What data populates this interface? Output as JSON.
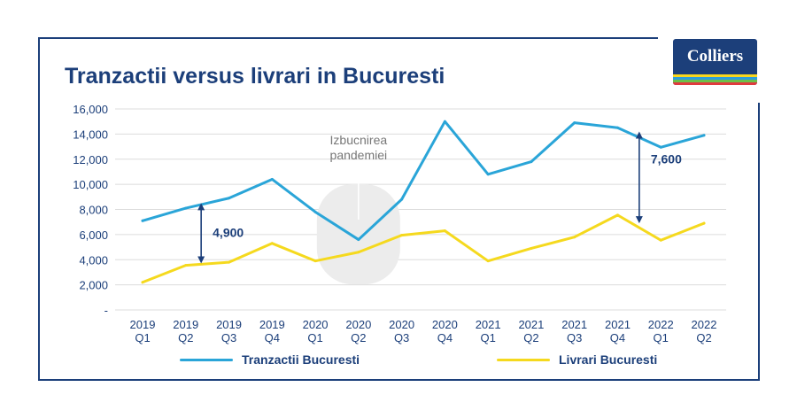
{
  "title": "Tranzactii versus livrari in Bucuresti",
  "brand": {
    "logo_text": "Colliers",
    "primary": "#1c3f7a",
    "stripe_colors": [
      "#f9d71c",
      "#2e9fd9",
      "#6cc04a",
      "#e03a3e"
    ]
  },
  "chart_data": {
    "type": "line",
    "title": "Tranzactii versus livrari in Bucuresti",
    "x_labels": [
      [
        "2019",
        "Q1"
      ],
      [
        "2019",
        "Q2"
      ],
      [
        "2019",
        "Q3"
      ],
      [
        "2019",
        "Q4"
      ],
      [
        "2020",
        "Q1"
      ],
      [
        "2020",
        "Q2"
      ],
      [
        "2020",
        "Q3"
      ],
      [
        "2020",
        "Q4"
      ],
      [
        "2021",
        "Q1"
      ],
      [
        "2021",
        "Q2"
      ],
      [
        "2021",
        "Q3"
      ],
      [
        "2021",
        "Q4"
      ],
      [
        "2022",
        "Q1"
      ],
      [
        "2022",
        "Q2"
      ]
    ],
    "ylim": [
      0,
      16000
    ],
    "yticks": [
      {
        "value": 0,
        "label": "-"
      },
      {
        "value": 2000,
        "label": "2,000"
      },
      {
        "value": 4000,
        "label": "4,000"
      },
      {
        "value": 6000,
        "label": "6,000"
      },
      {
        "value": 8000,
        "label": "8,000"
      },
      {
        "value": 10000,
        "label": "10,000"
      },
      {
        "value": 12000,
        "label": "12,000"
      },
      {
        "value": 14000,
        "label": "14,000"
      },
      {
        "value": 16000,
        "label": "16,000"
      }
    ],
    "grid": true,
    "legend_position": "bottom",
    "series": [
      {
        "name": "Tranzactii Bucuresti",
        "color": "#2aa5d8",
        "values": [
          7100,
          8100,
          8900,
          10400,
          7800,
          5600,
          8800,
          15000,
          10800,
          11800,
          14900,
          14500,
          12950,
          13900
        ]
      },
      {
        "name": "Livrari Bucuresti",
        "color": "#f5d91e",
        "values": [
          2200,
          3550,
          3800,
          5300,
          3900,
          4600,
          5950,
          6300,
          3900,
          4900,
          5800,
          7550,
          5550,
          6900
        ]
      }
    ],
    "annotations": [
      {
        "text_lines": [
          "Izbucnirea",
          "pandemiei"
        ],
        "x_index": 5
      },
      {
        "text": "4,900",
        "x_index": 1.5,
        "y_from": 3700,
        "y_to": 8500
      },
      {
        "text": "7,600",
        "x_index": 11.5,
        "y_from": 6900,
        "y_to": 14200
      }
    ]
  }
}
